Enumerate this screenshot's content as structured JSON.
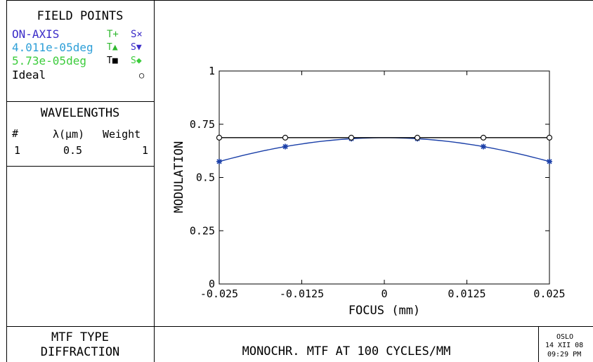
{
  "field_points": {
    "title": "FIELD POINTS",
    "rows": [
      {
        "label": "ON-AXIS",
        "t_label": "T+",
        "s_label": "S×",
        "color": "#3a2bc8",
        "t_color": "#2fb82f",
        "s_color": "#3a2bc8"
      },
      {
        "label": "4.011e-05deg",
        "t_label": "T▲",
        "s_label": "S▼",
        "color": "#2d9fd8",
        "t_color": "#2fb82f",
        "s_color": "#3a2bc8"
      },
      {
        "label": "5.73e-05deg",
        "t_label": "T■",
        "s_label": "S◆",
        "color": "#3ccc3c",
        "t_color": "#000000",
        "s_color": "#3ccc3c"
      },
      {
        "label": "Ideal",
        "t_label": "",
        "s_label": "○",
        "color": "#000000",
        "t_color": "#000000",
        "s_color": "#000000"
      }
    ]
  },
  "wavelengths": {
    "title": "WAVELENGTHS",
    "headers": [
      "#",
      "λ(μm)",
      "Weight"
    ],
    "rows": [
      [
        "1",
        "0.5",
        "1"
      ]
    ]
  },
  "footer": {
    "mtf_type_label": "MTF TYPE",
    "mtf_type_value": "DIFFRACTION",
    "caption": "MONOCHR. MTF AT 100 CYCLES/MM",
    "stamp_app": "OSLO",
    "stamp_date": "14 XII 08",
    "stamp_time": "09:29 PM"
  },
  "colors": {
    "series_blue": "#1a3fa8",
    "ideal": "#000000"
  },
  "chart_data": {
    "type": "line",
    "title": "",
    "xlabel": "FOCUS (mm)",
    "ylabel": "MODULATION",
    "xlim": [
      -0.025,
      0.025
    ],
    "ylim": [
      0,
      1
    ],
    "x_ticks": [
      -0.025,
      -0.0125,
      0,
      0.0125,
      0.025
    ],
    "x_tick_labels": [
      "-0.025",
      "-0.0125",
      "0",
      "0.0125",
      "0.025"
    ],
    "y_ticks": [
      0,
      0.25,
      0.5,
      0.75,
      1
    ],
    "y_tick_labels": [
      "0",
      "0.25",
      "0.5",
      "0.75",
      "1"
    ],
    "grid": false,
    "x": [
      -0.025,
      -0.015,
      -0.005,
      0.005,
      0.015,
      0.025
    ],
    "series": [
      {
        "values": [
          0.575,
          0.645,
          0.682,
          0.682,
          0.645,
          0.575
        ],
        "color": "#1a3fa8",
        "marker": "asterisk"
      },
      {
        "values": [
          0.687,
          0.687,
          0.687,
          0.687,
          0.687,
          0.687
        ],
        "color": "#000000",
        "marker": "circle"
      }
    ]
  }
}
